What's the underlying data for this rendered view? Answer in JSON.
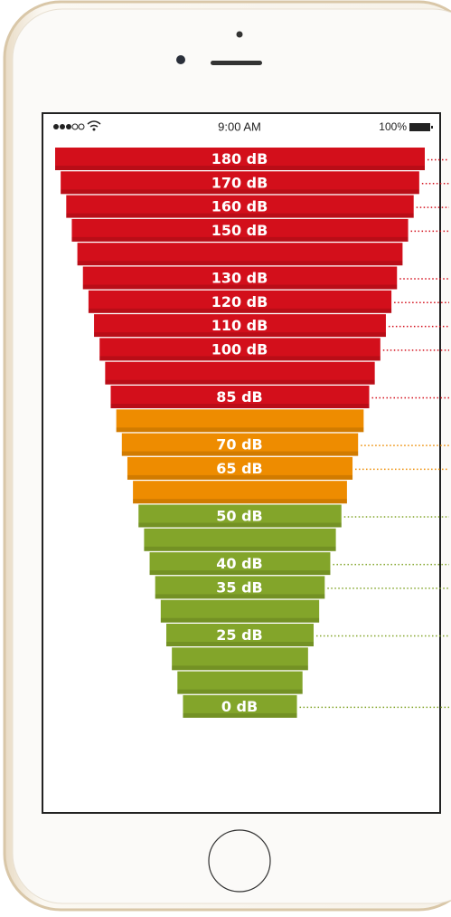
{
  "status_bar": {
    "time": "9:00 AM",
    "battery": "100%"
  },
  "groups": [
    {
      "color": "#d30f1b",
      "levels": [
        "180 dB",
        "170 dB",
        "160 dB",
        "150 dB",
        null,
        "130 dB",
        "120 dB",
        "110 dB",
        "100 dB",
        null,
        "85 dB"
      ]
    },
    {
      "color": "#ee8c00",
      "levels": [
        null,
        "70 dB",
        "65 dB",
        null
      ]
    },
    {
      "color": "#83a52a",
      "levels": [
        "50 dB",
        null,
        "40 dB",
        "35 dB",
        null,
        "25 dB",
        null,
        null,
        "0 dB"
      ]
    }
  ]
}
